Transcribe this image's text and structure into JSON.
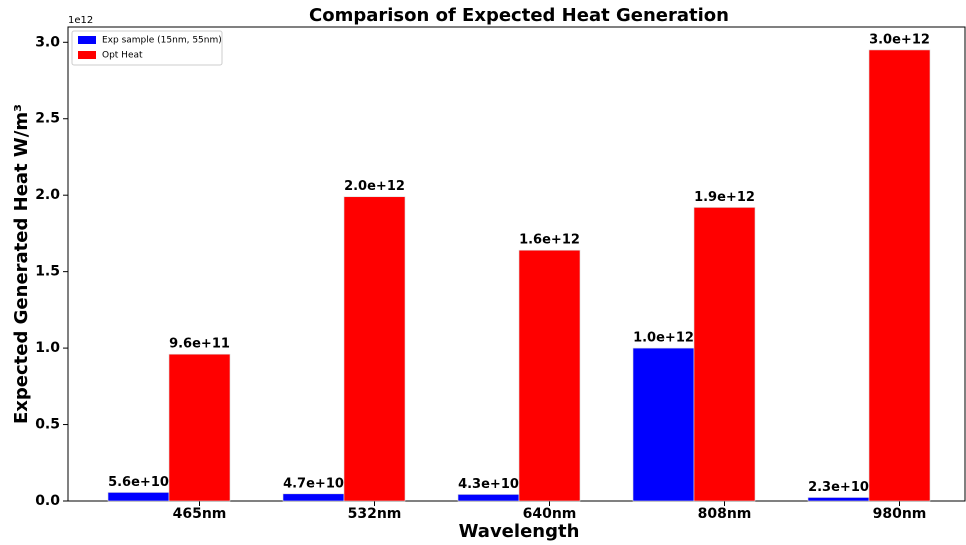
{
  "chart_data": {
    "type": "bar",
    "title": "Comparison of Expected Heat Generation",
    "x_label": "Wavelength",
    "y_label": "Expected Generated Heat W/m³",
    "y_offset_label": "1e12",
    "categories": [
      "465nm",
      "532nm",
      "640nm",
      "808nm",
      "980nm"
    ],
    "series": [
      {
        "name": "Exp sample (15nm, 55nm)",
        "color": "#0000ff",
        "values": [
          56000000000,
          47000000000,
          43000000000,
          1000000000000,
          23000000000
        ],
        "value_labels": [
          "5.6e+10",
          "4.7e+10",
          "4.3e+10",
          "1.0e+12",
          "2.3e+10"
        ]
      },
      {
        "name": "Opt Heat",
        "color": "#ff0000",
        "values": [
          960000000000,
          1990000000000,
          1640000000000,
          1920000000000,
          2950000000000
        ],
        "value_labels": [
          "9.6e+11",
          "2.0e+12",
          "1.6e+12",
          "1.9e+12",
          "3.0e+12"
        ]
      }
    ],
    "ylim": [
      0,
      3100000000000
    ],
    "yticks": [
      {
        "value": 0,
        "label": "0.0"
      },
      {
        "value": 500000000000,
        "label": "0.5"
      },
      {
        "value": 1000000000000,
        "label": "1.0"
      },
      {
        "value": 1500000000000,
        "label": "1.5"
      },
      {
        "value": 2000000000000,
        "label": "2.0"
      },
      {
        "value": 2500000000000,
        "label": "2.5"
      },
      {
        "value": 3000000000000,
        "label": "3.0"
      }
    ],
    "legend": "upper left"
  }
}
